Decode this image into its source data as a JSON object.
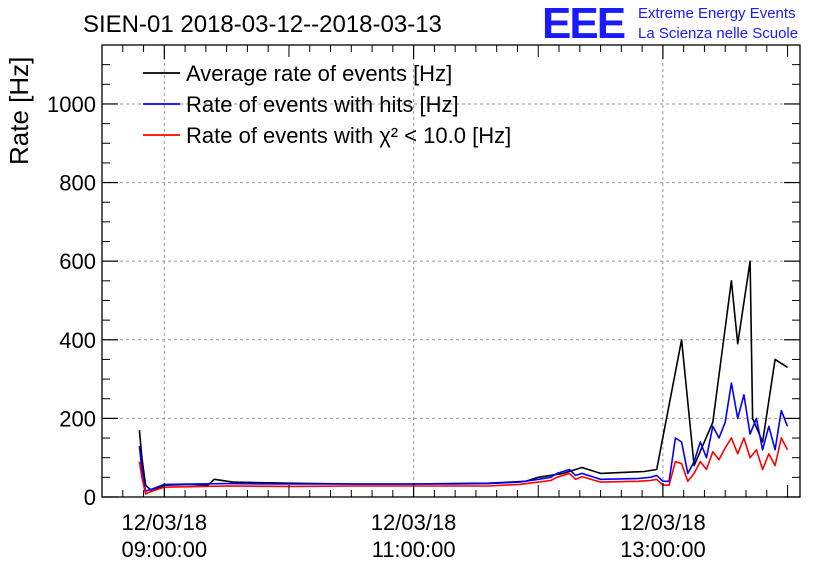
{
  "chart_data": {
    "type": "line",
    "title": "SIEN-01 2018-03-12--2018-03-13",
    "ylabel": "Rate [Hz]",
    "xlabel": "",
    "ylim": [
      0,
      1150
    ],
    "yticks": [
      0,
      200,
      400,
      600,
      800,
      1000
    ],
    "xlim_hours": [
      8.5,
      14.1
    ],
    "xticks": [
      {
        "date": "12/03/18",
        "time": "09:00:00",
        "hour": 9
      },
      {
        "date": "12/03/18",
        "time": "11:00:00",
        "hour": 11
      },
      {
        "date": "12/03/18",
        "time": "13:00:00",
        "hour": 13
      }
    ],
    "grid": true,
    "legend_position": "top-left",
    "series": [
      {
        "name": "Average rate of events [Hz]",
        "color": "#000000",
        "x": [
          8.8,
          8.82,
          8.85,
          8.9,
          9.0,
          9.2,
          9.35,
          9.4,
          9.55,
          10.0,
          10.5,
          11.0,
          11.3,
          11.6,
          11.9,
          12.0,
          12.2,
          12.3,
          12.35,
          12.5,
          12.85,
          12.95,
          13.15,
          13.25,
          13.4,
          13.55,
          13.6,
          13.7,
          13.72,
          13.8,
          13.9,
          13.95,
          14.0
        ],
        "y": [
          170,
          100,
          30,
          15,
          30,
          32,
          30,
          45,
          38,
          35,
          33,
          33,
          34,
          35,
          40,
          50,
          60,
          70,
          75,
          60,
          65,
          70,
          400,
          80,
          190,
          550,
          390,
          600,
          200,
          140,
          350,
          340,
          330
        ]
      },
      {
        "name": "Rate of events with hits [Hz]",
        "color": "#0000ff",
        "x": [
          8.8,
          8.82,
          8.85,
          8.9,
          9.0,
          9.5,
          10.0,
          10.5,
          11.0,
          11.3,
          11.6,
          11.85,
          12.0,
          12.1,
          12.15,
          12.2,
          12.25,
          12.3,
          12.35,
          12.5,
          12.8,
          12.9,
          12.95,
          13.0,
          13.05,
          13.1,
          13.15,
          13.2,
          13.25,
          13.3,
          13.35,
          13.4,
          13.45,
          13.5,
          13.55,
          13.6,
          13.65,
          13.7,
          13.75,
          13.8,
          13.85,
          13.9,
          13.95,
          14.0
        ],
        "y": [
          130,
          70,
          15,
          20,
          32,
          34,
          33,
          33,
          33,
          33,
          34,
          38,
          45,
          50,
          60,
          65,
          70,
          55,
          60,
          45,
          47,
          50,
          55,
          40,
          40,
          150,
          140,
          60,
          90,
          140,
          100,
          180,
          150,
          190,
          290,
          200,
          260,
          160,
          200,
          120,
          180,
          120,
          220,
          180
        ]
      },
      {
        "name": "Rate of events with χ² < 10.0 [Hz]",
        "color": "#ff0000",
        "x": [
          8.8,
          8.82,
          8.85,
          8.9,
          9.0,
          9.5,
          10.0,
          10.5,
          11.0,
          11.3,
          11.6,
          11.85,
          12.0,
          12.1,
          12.15,
          12.2,
          12.25,
          12.3,
          12.35,
          12.5,
          12.8,
          12.9,
          12.95,
          13.0,
          13.05,
          13.1,
          13.15,
          13.2,
          13.25,
          13.3,
          13.35,
          13.4,
          13.45,
          13.5,
          13.55,
          13.6,
          13.65,
          13.7,
          13.75,
          13.8,
          13.85,
          13.9,
          13.95,
          14.0
        ],
        "y": [
          90,
          50,
          8,
          15,
          25,
          28,
          27,
          28,
          28,
          28,
          28,
          32,
          38,
          42,
          50,
          55,
          60,
          45,
          52,
          38,
          40,
          42,
          45,
          30,
          30,
          90,
          85,
          40,
          60,
          90,
          70,
          115,
          95,
          125,
          150,
          110,
          150,
          100,
          120,
          70,
          110,
          80,
          150,
          120
        ]
      }
    ]
  },
  "logo": {
    "mark": "EEE",
    "line1": "Extreme Energy Events",
    "line2": "La Scienza nelle Scuole",
    "color": "#1a1aff"
  }
}
